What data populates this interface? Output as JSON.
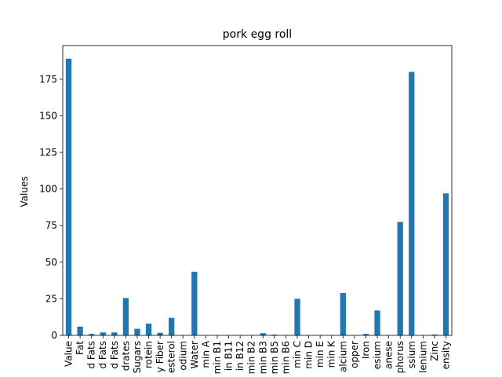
{
  "chart_data": {
    "type": "bar",
    "title": "pork egg roll",
    "xlabel": "",
    "ylabel": "Values",
    "ylim": [
      0,
      198
    ],
    "yticks": [
      0,
      25,
      50,
      75,
      100,
      125,
      150,
      175
    ],
    "grid": false,
    "categories": [
      "Value",
      "Fat",
      "d Fats",
      "d Fats",
      "d Fats",
      "drates",
      "Sugars",
      "rotein",
      "y Fiber",
      "esterol",
      "odium",
      "Water",
      "min A",
      "min B1",
      "in B11",
      "in B12",
      "min B2",
      "min B3",
      "min B5",
      "min B6",
      "min C",
      "min D",
      "min E",
      "min K",
      "alcium",
      "opper",
      "Iron",
      "esium",
      "anese",
      "phorus",
      "ssium",
      "lenium",
      "Zinc",
      "ensity"
    ],
    "values": [
      189,
      6,
      1,
      2,
      2,
      25.5,
      4.5,
      8,
      1.8,
      12,
      0,
      43.5,
      0,
      0,
      0,
      0,
      0,
      1.5,
      0.5,
      0,
      25,
      0,
      0,
      0,
      29,
      0,
      1,
      17,
      0,
      77.5,
      180,
      0,
      0.6,
      97
    ],
    "bar_color": "#1f77b4"
  }
}
